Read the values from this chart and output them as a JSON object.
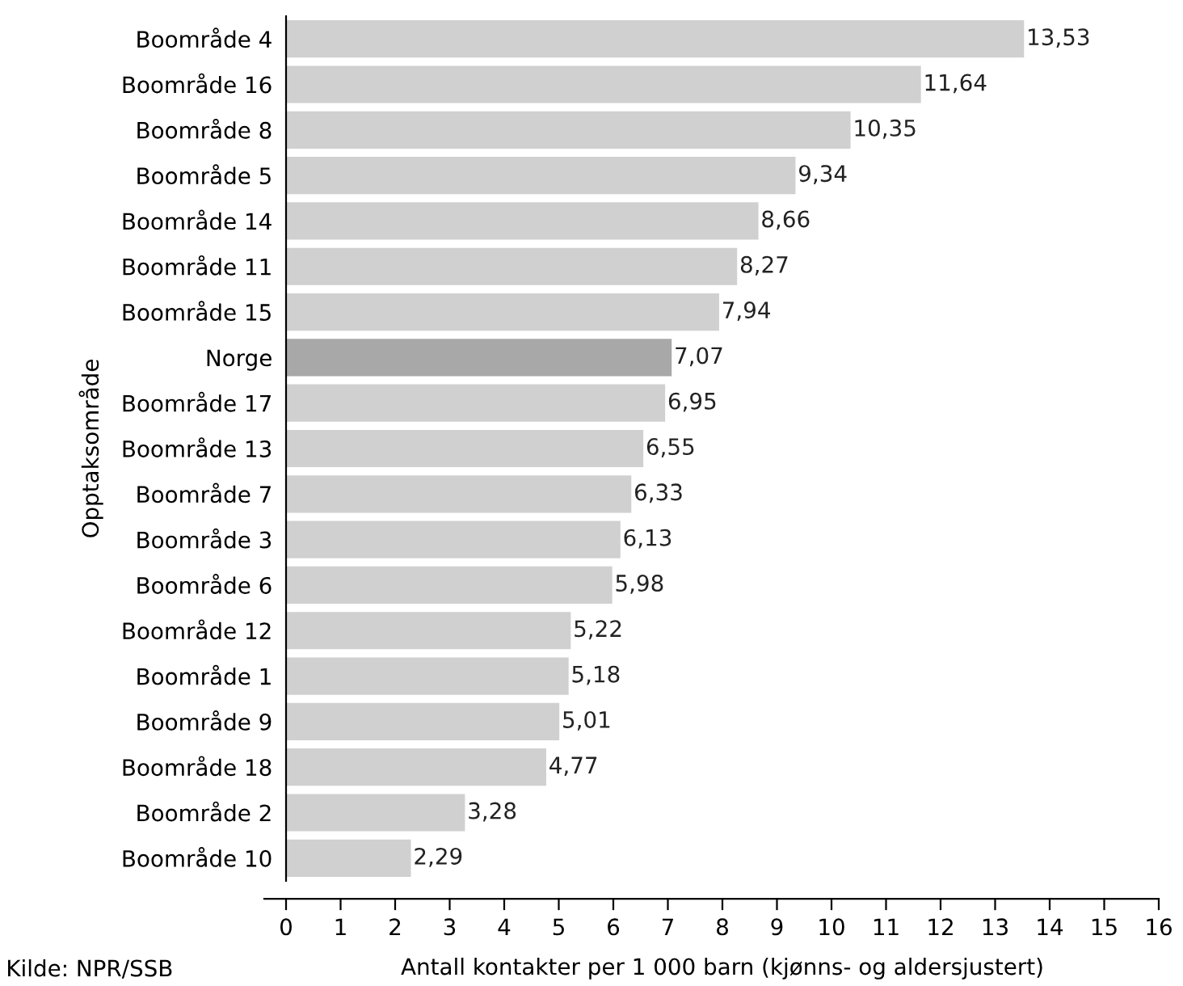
{
  "chart_data": {
    "type": "bar",
    "orientation": "horizontal",
    "xlabel": "Antall kontakter per 1 000 barn (kjønns- og aldersjustert)",
    "ylabel": "Opptaksområde",
    "categories": [
      "Boområde 4",
      "Boområde 16",
      "Boområde 8",
      "Boområde 5",
      "Boområde 14",
      "Boområde 11",
      "Boområde 15",
      "Norge",
      "Boområde 17",
      "Boområde 13",
      "Boområde 7",
      "Boområde 3",
      "Boområde 6",
      "Boområde 12",
      "Boområde 1",
      "Boområde 9",
      "Boområde 18",
      "Boområde 2",
      "Boområde 10"
    ],
    "values": [
      13.53,
      11.64,
      10.35,
      9.34,
      8.66,
      8.27,
      7.94,
      7.07,
      6.95,
      6.55,
      6.33,
      6.13,
      5.98,
      5.22,
      5.18,
      5.01,
      4.77,
      3.28,
      2.29
    ],
    "value_labels": [
      "13,53",
      "11,64",
      "10,35",
      "9,34",
      "8,66",
      "8,27",
      "7,94",
      "7,07",
      "6,95",
      "6,55",
      "6,33",
      "6,13",
      "5,98",
      "5,22",
      "5,18",
      "5,01",
      "4,77",
      "3,28",
      "2,29"
    ],
    "colors": [
      "#d0d0d0",
      "#d0d0d0",
      "#d0d0d0",
      "#d0d0d0",
      "#d0d0d0",
      "#d0d0d0",
      "#d0d0d0",
      "#a8a8a8",
      "#d0d0d0",
      "#d0d0d0",
      "#d0d0d0",
      "#d0d0d0",
      "#d0d0d0",
      "#d0d0d0",
      "#d0d0d0",
      "#d0d0d0",
      "#d0d0d0",
      "#d0d0d0",
      "#d0d0d0"
    ],
    "xlim": [
      0,
      16
    ],
    "xticks": [
      0,
      1,
      2,
      3,
      4,
      5,
      6,
      7,
      8,
      9,
      10,
      11,
      12,
      13,
      14,
      15,
      16
    ],
    "grid": false,
    "legend": false,
    "annotations": [
      "Kilde: NPR/SSB"
    ]
  }
}
